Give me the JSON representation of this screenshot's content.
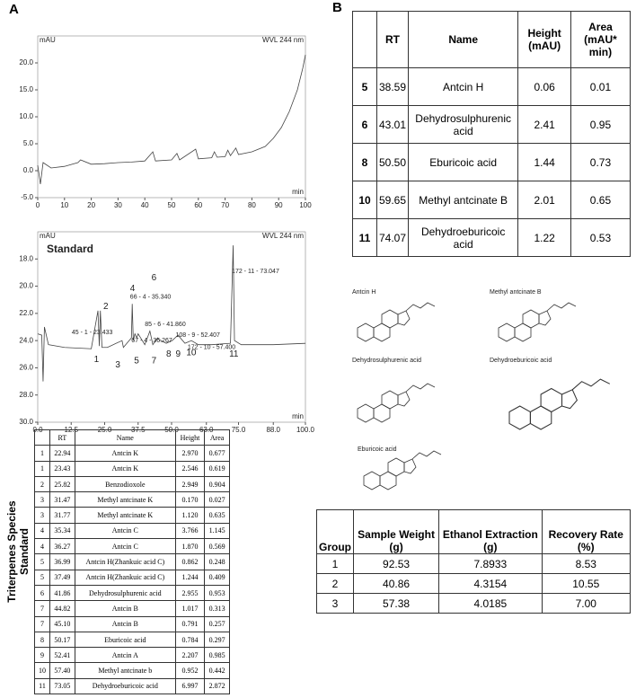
{
  "panel_labels": [
    "A",
    "B"
  ],
  "chart_data": [
    {
      "type": "line",
      "y_label": "mAU",
      "subtitle": "WVL 244 nm",
      "x_label": "min",
      "x": [
        0,
        1,
        2,
        5,
        10,
        15,
        16,
        20,
        25,
        30,
        35,
        40,
        43,
        44,
        50,
        52,
        53,
        59,
        60,
        65,
        66,
        67,
        70,
        71,
        72,
        74,
        75,
        80,
        85,
        88,
        91,
        94,
        97,
        99,
        100
      ],
      "series": [
        {
          "color": "#444",
          "values": [
            1,
            -2.5,
            1.5,
            0.5,
            0.8,
            1.5,
            2,
            1.2,
            1.3,
            1.5,
            1.6,
            1.8,
            3.5,
            1.8,
            2,
            3.2,
            2,
            4,
            2.2,
            2.4,
            3.5,
            2.5,
            2.6,
            3.8,
            2.8,
            4.2,
            3,
            3.5,
            4.5,
            6,
            8,
            11,
            15,
            19,
            21.5
          ]
        }
      ],
      "xlim": [
        0,
        100
      ],
      "xticks": [
        0,
        10,
        20,
        30,
        40,
        50,
        60,
        70,
        80,
        90,
        100
      ],
      "ylim": [
        -5,
        25
      ],
      "yticks": [
        {
          "value": -5,
          "label": "-5.0"
        },
        {
          "value": 0,
          "label": "0.0"
        },
        {
          "value": 5,
          "label": "5.0"
        },
        {
          "value": 10,
          "label": "10.0"
        },
        {
          "value": 15,
          "label": "15.0"
        },
        {
          "value": 20,
          "label": "20.0"
        }
      ]
    },
    {
      "type": "line",
      "title": "Standard",
      "y_label": "mAU",
      "subtitle": "WVL 244 nm",
      "x_label": "min",
      "x": [
        0,
        1.5,
        2,
        2.5,
        4,
        10,
        20,
        22.5,
        23,
        23.4,
        24,
        26,
        31.5,
        32,
        35,
        35.3,
        35.7,
        36.3,
        37,
        37.5,
        40,
        41.9,
        43,
        44.8,
        45.1,
        48,
        50.2,
        52.4,
        55,
        57.4,
        60,
        65,
        72,
        73,
        73.5,
        76,
        88,
        100
      ],
      "series": [
        {
          "color": "#444",
          "values": [
            23.5,
            23.6,
            27,
            23,
            24.3,
            24.5,
            24.6,
            21.8,
            24.4,
            21.8,
            24.5,
            24.5,
            24,
            24.5,
            23.8,
            21.3,
            24,
            23.5,
            23.8,
            23.5,
            24.3,
            23.3,
            24.3,
            23.8,
            23.9,
            24.2,
            24,
            23.6,
            24.2,
            24,
            24.3,
            24.3,
            24.2,
            17,
            24,
            24.3,
            24.3,
            24.2
          ]
        }
      ],
      "xlim": [
        0,
        100
      ],
      "xticks": [
        {
          "value": 0,
          "label": "0.0"
        },
        12.5,
        {
          "value": 25,
          "label": "25.0"
        },
        37.5,
        {
          "value": 50,
          "label": "50.0"
        },
        {
          "value": 63,
          "label": "63.0"
        },
        {
          "value": 75,
          "label": "75.0"
        },
        {
          "value": 88,
          "label": "88.0"
        },
        {
          "value": 100,
          "label": "100.0"
        }
      ],
      "ylim": [
        30,
        16
      ],
      "yticks": [
        {
          "value": 18,
          "label": "18.0"
        },
        {
          "value": 20,
          "label": "20.0"
        },
        {
          "value": 22,
          "label": "22.0"
        },
        {
          "value": 24,
          "label": "24.0"
        },
        {
          "value": 26,
          "label": "26.0"
        },
        {
          "value": 28,
          "label": "28.0"
        },
        {
          "value": 30,
          "label": "30.0"
        }
      ],
      "annotations": [
        {
          "text": "1",
          "x": 21,
          "y": 25.4
        },
        {
          "text": "2",
          "x": 24.5,
          "y": 21.5
        },
        {
          "text": "3",
          "x": 29,
          "y": 25.8
        },
        {
          "text": "4",
          "x": 34.5,
          "y": 20.2
        },
        {
          "text": "5",
          "x": 36,
          "y": 25.5
        },
        {
          "text": "6",
          "x": 42.5,
          "y": 19.4
        },
        {
          "text": "7",
          "x": 42.5,
          "y": 25.5
        },
        {
          "text": "8",
          "x": 48,
          "y": 25
        },
        {
          "text": "9",
          "x": 51.5,
          "y": 25
        },
        {
          "text": "10",
          "x": 55.5,
          "y": 24.9
        },
        {
          "text": "11",
          "x": 71.5,
          "y": 25
        },
        {
          "text": "172 - 11 - 73.047",
          "x": 72.5,
          "y": 18.9
        },
        {
          "text": "66 - 4 - 35.340",
          "x": 34.5,
          "y": 20.8
        },
        {
          "text": "85 - 6 - 41.860",
          "x": 40,
          "y": 22.8
        },
        {
          "text": "67 - 4 - 36.267",
          "x": 35,
          "y": 24
        },
        {
          "text": "108 - 9 - 52.407",
          "x": 51.5,
          "y": 23.6
        },
        {
          "text": "172 - 10 - 57.400",
          "x": 56,
          "y": 24.5
        },
        {
          "text": "45 - 1 - 23.433",
          "x": 12.7,
          "y": 23.4
        }
      ]
    }
  ],
  "table_b": {
    "header": [
      "RT",
      "Name",
      "Height (mAU)",
      "Area (mAU* min)"
    ],
    "rows": [
      [
        "5",
        "38.59",
        "Antcin H",
        "0.06",
        "0.01"
      ],
      [
        "6",
        "43.01",
        "Dehydrosulphurenic acid",
        "2.41",
        "0.95"
      ],
      [
        "8",
        "50.50",
        "Eburicoic acid",
        "1.44",
        "0.73"
      ],
      [
        "10",
        "59.65",
        "Methyl antcinate B",
        "2.01",
        "0.65"
      ],
      [
        "11",
        "74.07",
        "Dehydroeburicoic acid",
        "1.22",
        "0.53"
      ]
    ]
  },
  "structures": [
    "Antcin H",
    "Methyl antcinate B",
    "Dehydrosulphurenic acid",
    "Dehydroeburicoic acid",
    "Eburicoic acid"
  ],
  "table_a": {
    "side_label": "Triterpenes Species Standard",
    "header": [
      "RT",
      "Name",
      "Height",
      "Area"
    ],
    "rows": [
      [
        "1",
        "22.94",
        "Antcin K",
        "2.970",
        "0.677"
      ],
      [
        "1",
        "23.43",
        "Antcin K",
        "2.546",
        "0.619"
      ],
      [
        "2",
        "25.82",
        "Benzodioxole",
        "2.949",
        "0.904"
      ],
      [
        "3",
        "31.47",
        "Methyl antcinate K",
        "0.170",
        "0.027"
      ],
      [
        "3",
        "31.77",
        "Methyl antcinate K",
        "1.120",
        "0.635"
      ],
      [
        "4",
        "35.34",
        "Antcin C",
        "3.766",
        "1.145"
      ],
      [
        "4",
        "36.27",
        "Antcin C",
        "1.870",
        "0.569"
      ],
      [
        "5",
        "36.99",
        "Antcin H(Zhankuic acid C)",
        "0.862",
        "0.248"
      ],
      [
        "5",
        "37.49",
        "Antcin H(Zhankuic acid C)",
        "1.244",
        "0.409"
      ],
      [
        "6",
        "41.86",
        "Dehydrosulphurenic acid",
        "2.955",
        "0.953"
      ],
      [
        "7",
        "44.82",
        "Antcin B",
        "1.017",
        "0.313"
      ],
      [
        "7",
        "45.10",
        "Antcin B",
        "0.791",
        "0.257"
      ],
      [
        "8",
        "50.17",
        "Eburicoic acid",
        "0.784",
        "0.297"
      ],
      [
        "9",
        "52.41",
        "Antcin A",
        "2.207",
        "0.985"
      ],
      [
        "10",
        "57.40",
        "Methyl antcinate b",
        "0.952",
        "0.442"
      ],
      [
        "11",
        "73.05",
        "Dehydroeburicoic acid",
        "6.997",
        "2.872"
      ]
    ]
  },
  "table_c": {
    "header": [
      "Group",
      "Sample Weight (g)",
      "Ethanol Extraction (g)",
      "Recovery Rate (%)"
    ],
    "rows": [
      [
        "1",
        "92.53",
        "7.8933",
        "8.53"
      ],
      [
        "2",
        "40.86",
        "4.3154",
        "10.55"
      ],
      [
        "3",
        "57.38",
        "4.0185",
        "7.00"
      ]
    ]
  }
}
